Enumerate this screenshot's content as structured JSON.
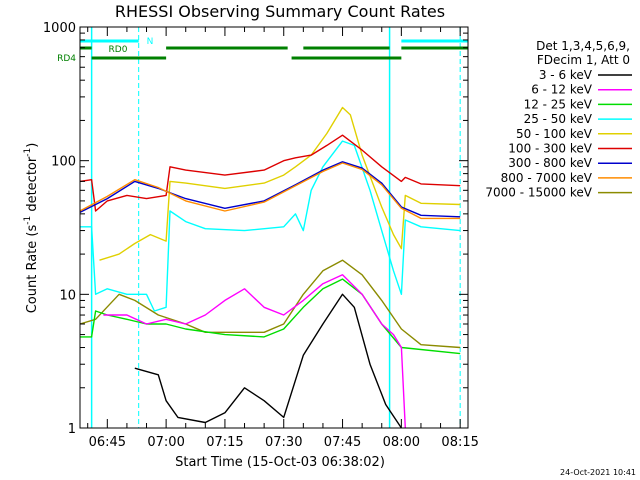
{
  "chart_data": {
    "type": "line",
    "title": "RHESSI Observing Summary Count Rates",
    "xlabel": "Start Time (15-Oct-03 06:38:02)",
    "ylabel": "Count Rate (s⁻¹ detector⁻¹)",
    "y_scale": "log",
    "ylim": [
      1,
      1000
    ],
    "xlim": [
      "06:38:02",
      "08:17:00"
    ],
    "x_ticks": [
      "06:45",
      "07:00",
      "07:15",
      "07:30",
      "07:45",
      "08:00",
      "08:15"
    ],
    "y_ticks": [
      "1",
      "10",
      "100",
      "1000"
    ],
    "grid": false,
    "legend_position": "right",
    "legend_header": [
      "Det 1,3,4,5,6,9,",
      "FDecim 1, Att 0"
    ],
    "series": [
      {
        "name": "3 - 6 keV",
        "color": "#000000",
        "points": [
          [
            "06:38",
            0
          ],
          [
            "06:51",
            0
          ],
          [
            "06:52",
            2.8
          ],
          [
            "06:58",
            2.5
          ],
          [
            "07:00",
            1.6
          ],
          [
            "07:03",
            1.2
          ],
          [
            "07:10",
            1.1
          ],
          [
            "07:15",
            1.3
          ],
          [
            "07:20",
            2.0
          ],
          [
            "07:25",
            1.6
          ],
          [
            "07:30",
            1.2
          ],
          [
            "07:35",
            3.5
          ],
          [
            "07:40",
            6.0
          ],
          [
            "07:45",
            10.0
          ],
          [
            "07:48",
            8.0
          ],
          [
            "07:52",
            3.0
          ],
          [
            "07:56",
            1.5
          ],
          [
            "08:00",
            1.0
          ],
          [
            "08:01",
            0
          ]
        ]
      },
      {
        "name": "6 - 12 keV",
        "color": "#ff00ff",
        "points": [
          [
            "06:38",
            0
          ],
          [
            "06:43",
            0
          ],
          [
            "06:44",
            7
          ],
          [
            "06:50",
            7
          ],
          [
            "06:55",
            6
          ],
          [
            "07:00",
            6.5
          ],
          [
            "07:05",
            6
          ],
          [
            "07:10",
            7
          ],
          [
            "07:15",
            9
          ],
          [
            "07:20",
            11
          ],
          [
            "07:25",
            8
          ],
          [
            "07:30",
            7
          ],
          [
            "07:35",
            9
          ],
          [
            "07:40",
            12
          ],
          [
            "07:45",
            14
          ],
          [
            "07:50",
            10
          ],
          [
            "07:55",
            6
          ],
          [
            "07:58",
            5
          ],
          [
            "08:00",
            4
          ],
          [
            "08:01",
            1
          ]
        ]
      },
      {
        "name": "12 - 25 keV",
        "color": "#00dd00",
        "points": [
          [
            "06:38",
            4.8
          ],
          [
            "06:41",
            4.8
          ],
          [
            "06:42",
            7.5
          ],
          [
            "06:45",
            7.0
          ],
          [
            "06:50",
            6.5
          ],
          [
            "06:55",
            6.0
          ],
          [
            "07:00",
            6.0
          ],
          [
            "07:05",
            5.5
          ],
          [
            "07:15",
            5.0
          ],
          [
            "07:25",
            4.8
          ],
          [
            "07:30",
            5.5
          ],
          [
            "07:35",
            8.0
          ],
          [
            "07:40",
            11
          ],
          [
            "07:45",
            13
          ],
          [
            "07:50",
            10
          ],
          [
            "07:55",
            6
          ],
          [
            "08:00",
            4
          ],
          [
            "08:15",
            3.6
          ]
        ]
      },
      {
        "name": "25 - 50 keV",
        "color": "#00ffff",
        "points": [
          [
            "06:38",
            32
          ],
          [
            "06:41",
            32
          ],
          [
            "06:42",
            10
          ],
          [
            "06:45",
            11
          ],
          [
            "06:50",
            10
          ],
          [
            "06:55",
            10
          ],
          [
            "06:57",
            7.5
          ],
          [
            "07:00",
            8
          ],
          [
            "07:01",
            42
          ],
          [
            "07:05",
            35
          ],
          [
            "07:10",
            31
          ],
          [
            "07:20",
            30
          ],
          [
            "07:30",
            32
          ],
          [
            "07:33",
            40
          ],
          [
            "07:35",
            30
          ],
          [
            "07:37",
            60
          ],
          [
            "07:40",
            90
          ],
          [
            "07:45",
            140
          ],
          [
            "07:48",
            130
          ],
          [
            "07:52",
            60
          ],
          [
            "07:55",
            30
          ],
          [
            "07:58",
            15
          ],
          [
            "08:00",
            10
          ],
          [
            "08:01",
            36
          ],
          [
            "08:05",
            32
          ],
          [
            "08:15",
            30
          ]
        ]
      },
      {
        "name": "50 - 100 keV",
        "color": "#e0d000",
        "points": [
          [
            "06:38",
            0
          ],
          [
            "06:42",
            0
          ],
          [
            "06:43",
            18
          ],
          [
            "06:48",
            20
          ],
          [
            "06:52",
            24
          ],
          [
            "06:56",
            28
          ],
          [
            "07:00",
            25
          ],
          [
            "07:01",
            70
          ],
          [
            "07:05",
            68
          ],
          [
            "07:15",
            62
          ],
          [
            "07:25",
            68
          ],
          [
            "07:30",
            78
          ],
          [
            "07:33",
            90
          ],
          [
            "07:37",
            110
          ],
          [
            "07:41",
            160
          ],
          [
            "07:45",
            250
          ],
          [
            "07:47",
            220
          ],
          [
            "07:50",
            110
          ],
          [
            "07:55",
            45
          ],
          [
            "07:58",
            28
          ],
          [
            "08:00",
            22
          ],
          [
            "08:01",
            55
          ],
          [
            "08:05",
            48
          ],
          [
            "08:15",
            47
          ]
        ]
      },
      {
        "name": "100 - 300 keV",
        "color": "#dd0000",
        "points": [
          [
            "06:38",
            70
          ],
          [
            "06:41",
            72
          ],
          [
            "06:42",
            42
          ],
          [
            "06:45",
            50
          ],
          [
            "06:50",
            55
          ],
          [
            "06:55",
            52
          ],
          [
            "07:00",
            55
          ],
          [
            "07:01",
            90
          ],
          [
            "07:05",
            85
          ],
          [
            "07:15",
            78
          ],
          [
            "07:25",
            85
          ],
          [
            "07:30",
            100
          ],
          [
            "07:33",
            105
          ],
          [
            "07:37",
            110
          ],
          [
            "07:41",
            130
          ],
          [
            "07:45",
            155
          ],
          [
            "07:50",
            120
          ],
          [
            "07:55",
            90
          ],
          [
            "08:00",
            70
          ],
          [
            "08:01",
            75
          ],
          [
            "08:05",
            67
          ],
          [
            "08:15",
            65
          ]
        ]
      },
      {
        "name": "300 - 800 keV",
        "color": "#0000cc",
        "points": [
          [
            "06:38",
            41
          ],
          [
            "06:45",
            52
          ],
          [
            "06:52",
            70
          ],
          [
            "06:58",
            62
          ],
          [
            "07:05",
            52
          ],
          [
            "07:15",
            44
          ],
          [
            "07:25",
            50
          ],
          [
            "07:33",
            66
          ],
          [
            "07:40",
            85
          ],
          [
            "07:45",
            98
          ],
          [
            "07:50",
            88
          ],
          [
            "07:55",
            68
          ],
          [
            "08:00",
            45
          ],
          [
            "08:05",
            39
          ],
          [
            "08:15",
            38
          ]
        ]
      },
      {
        "name": "800 - 7000 keV",
        "color": "#ff8c00",
        "points": [
          [
            "06:38",
            42
          ],
          [
            "06:45",
            54
          ],
          [
            "06:52",
            72
          ],
          [
            "06:58",
            63
          ],
          [
            "07:05",
            50
          ],
          [
            "07:15",
            42
          ],
          [
            "07:25",
            49
          ],
          [
            "07:33",
            65
          ],
          [
            "07:40",
            83
          ],
          [
            "07:45",
            96
          ],
          [
            "07:50",
            86
          ],
          [
            "07:55",
            66
          ],
          [
            "08:00",
            44
          ],
          [
            "08:05",
            37
          ],
          [
            "08:15",
            37
          ]
        ]
      },
      {
        "name": "7000 - 15000 keV",
        "color": "#8b8b00",
        "points": [
          [
            "06:38",
            6
          ],
          [
            "06:42",
            6.5
          ],
          [
            "06:48",
            10
          ],
          [
            "06:52",
            9
          ],
          [
            "06:58",
            7
          ],
          [
            "07:05",
            6
          ],
          [
            "07:10",
            5.2
          ],
          [
            "07:25",
            5.2
          ],
          [
            "07:30",
            6
          ],
          [
            "07:35",
            10
          ],
          [
            "07:40",
            15
          ],
          [
            "07:45",
            18
          ],
          [
            "07:50",
            14
          ],
          [
            "07:55",
            9
          ],
          [
            "08:00",
            5.5
          ],
          [
            "08:05",
            4.2
          ],
          [
            "08:15",
            4.0
          ]
        ]
      }
    ],
    "flags": [
      {
        "name": "N",
        "color": "#00ffff",
        "segments": [
          [
            "06:38",
            "06:53"
          ],
          [
            "08:00",
            "08:17"
          ]
        ]
      },
      {
        "name": "RD0",
        "color": "#008000",
        "segments": [
          [
            "06:38",
            "06:41"
          ],
          [
            "07:00",
            "07:31"
          ],
          [
            "07:35",
            "07:57"
          ],
          [
            "08:00",
            "08:17"
          ]
        ]
      },
      {
        "name": "RD4",
        "color": "#008000",
        "segments": [
          [
            "06:41",
            "07:00"
          ],
          [
            "07:32",
            "08:00"
          ]
        ]
      }
    ],
    "night_markers": [
      "06:53",
      "08:15"
    ],
    "night_end_marker": "06:41",
    "night_start_marker": "07:57",
    "timestamp": "24-Oct-2021 10:41"
  }
}
